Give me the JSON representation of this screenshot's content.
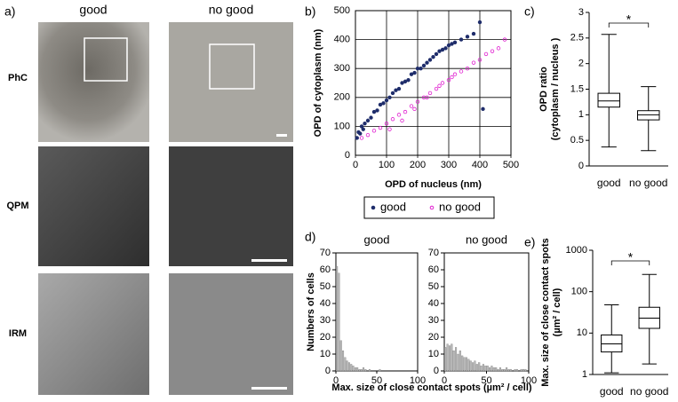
{
  "panel_labels": [
    "a)",
    "b)",
    "c)",
    "d)",
    "e)"
  ],
  "panel_a": {
    "columns": [
      "good",
      "no good"
    ],
    "rows": [
      "PhC",
      "QPM",
      "IRM"
    ]
  },
  "chart_data": [
    {
      "type": "scatter",
      "xlabel": "OPD of nucleus (nm)",
      "ylabel": "OPD of cytoplasm (nm)",
      "xlim": [
        0,
        500
      ],
      "ylim": [
        0,
        500
      ],
      "xticks": [
        0,
        100,
        200,
        300,
        400,
        500
      ],
      "yticks": [
        0,
        100,
        200,
        300,
        400,
        500
      ],
      "grid": true,
      "series": [
        {
          "name": "good",
          "color": "#1f2d6b",
          "marker": "filled",
          "x": [
            5,
            10,
            15,
            20,
            25,
            30,
            40,
            50,
            60,
            70,
            80,
            90,
            100,
            110,
            120,
            130,
            140,
            150,
            160,
            170,
            180,
            190,
            200,
            210,
            220,
            230,
            240,
            250,
            260,
            270,
            280,
            290,
            300,
            310,
            320,
            340,
            360,
            380,
            400,
            410
          ],
          "values": [
            60,
            80,
            75,
            100,
            90,
            110,
            120,
            130,
            150,
            155,
            175,
            180,
            190,
            200,
            215,
            225,
            230,
            250,
            255,
            260,
            280,
            285,
            300,
            300,
            310,
            320,
            330,
            340,
            350,
            360,
            365,
            370,
            380,
            385,
            390,
            400,
            410,
            420,
            460,
            160
          ]
        },
        {
          "name": "no good",
          "color": "#e020d0",
          "marker": "open",
          "x": [
            20,
            40,
            60,
            80,
            100,
            120,
            140,
            160,
            180,
            200,
            220,
            240,
            260,
            280,
            300,
            320,
            340,
            360,
            380,
            400,
            420,
            440,
            460,
            480,
            110,
            150,
            190,
            230,
            270,
            310
          ],
          "values": [
            60,
            70,
            85,
            95,
            110,
            125,
            140,
            150,
            170,
            185,
            200,
            215,
            230,
            250,
            260,
            280,
            290,
            300,
            320,
            330,
            350,
            360,
            370,
            400,
            90,
            120,
            160,
            200,
            240,
            270
          ]
        }
      ]
    },
    {
      "type": "box",
      "ylabel": [
        "OPD ratio",
        "(cytoplasm / nucleus )"
      ],
      "annotation": "*",
      "categories": [
        "good",
        "no good"
      ],
      "ylim": [
        0,
        3
      ],
      "yticks": [
        0,
        0.5,
        1,
        1.5,
        2,
        2.5,
        3
      ],
      "low": [
        0.37,
        0.3
      ],
      "q1": [
        1.15,
        0.9
      ],
      "median": [
        1.27,
        1.0
      ],
      "q3": [
        1.42,
        1.08
      ],
      "high": [
        2.57,
        1.55
      ]
    },
    {
      "type": "histogram",
      "title": "good",
      "ylabel": "Numbers of cells",
      "xlabel": "Max. size of close contact spots (µm² / cell)",
      "xlim": [
        0,
        100
      ],
      "xticks": [
        0,
        50,
        100
      ],
      "ylim": [
        0,
        70
      ],
      "yticks": [
        0,
        10,
        20,
        30,
        40,
        50,
        60,
        70
      ],
      "color": "#b8b8b8",
      "bins": [
        0,
        2.5,
        5,
        7.5,
        10,
        12.5,
        15,
        17.5,
        20,
        22.5,
        25,
        27.5,
        30,
        32.5,
        35,
        37.5,
        40,
        42.5,
        45,
        47.5,
        50,
        52.5,
        55,
        57.5,
        60,
        62.5,
        65,
        67.5,
        70,
        72.5,
        75,
        77.5,
        80,
        82.5,
        85,
        87.5,
        90,
        92.5,
        95,
        97.5,
        100
      ],
      "counts": [
        62,
        58,
        18,
        12,
        8,
        6,
        5,
        4,
        3,
        2,
        2,
        1,
        1,
        2,
        1,
        0,
        1,
        0,
        0,
        0,
        0,
        1,
        0,
        0,
        0,
        0,
        0,
        0,
        0,
        0,
        0,
        0,
        0,
        0,
        0,
        0,
        0,
        0,
        0,
        0
      ]
    },
    {
      "type": "histogram",
      "title": "no good",
      "xlim": [
        0,
        100
      ],
      "xticks": [
        0,
        50,
        100
      ],
      "ylim": [
        0,
        70
      ],
      "yticks": [
        0,
        10,
        20,
        30,
        40,
        50,
        60,
        70
      ],
      "color": "#b8b8b8",
      "bins": [
        0,
        2.5,
        5,
        7.5,
        10,
        12.5,
        15,
        17.5,
        20,
        22.5,
        25,
        27.5,
        30,
        32.5,
        35,
        37.5,
        40,
        42.5,
        45,
        47.5,
        50,
        52.5,
        55,
        57.5,
        60,
        62.5,
        65,
        67.5,
        70,
        72.5,
        75,
        77.5,
        80,
        82.5,
        85,
        87.5,
        90,
        92.5,
        95,
        97.5,
        100
      ],
      "counts": [
        14,
        16,
        15,
        16,
        12,
        14,
        10,
        12,
        9,
        8,
        8,
        7,
        6,
        5,
        6,
        4,
        5,
        3,
        4,
        3,
        3,
        2,
        3,
        2,
        2,
        1,
        2,
        1,
        1,
        2,
        1,
        1,
        0,
        1,
        1,
        0,
        1,
        1,
        1,
        0
      ]
    },
    {
      "type": "box",
      "ylabel": [
        "Max. size of close contact spots",
        "(µm² / cell)"
      ],
      "annotation": "*",
      "log_scale": true,
      "categories": [
        "good",
        "no good"
      ],
      "ylim": [
        1,
        1000
      ],
      "yticks": [
        1,
        10,
        100,
        1000
      ],
      "low": [
        1.1,
        1.8
      ],
      "q1": [
        3.5,
        13
      ],
      "median": [
        5.5,
        23
      ],
      "q3": [
        9,
        42
      ],
      "high": [
        48,
        260
      ]
    }
  ]
}
